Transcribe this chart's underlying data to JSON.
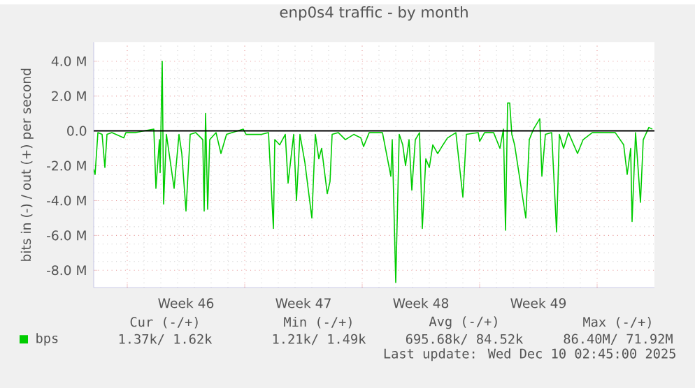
{
  "chart_data": {
    "type": "line",
    "title": "enp0s4 traffic - by month",
    "ylabel": "bits in (-) / out (+) per second",
    "x": [
      "2025-11-08T00:00",
      "2025-11-08T02:00",
      "2025-11-08T06:00",
      "2025-11-08T12:00",
      "2025-11-08T16:00",
      "2025-11-08T19:00",
      "2025-11-09T02:00",
      "2025-11-09T19:00",
      "2025-11-09T22:00",
      "2025-11-10T12:00",
      "2025-11-11T00:00",
      "2025-11-11T14:00",
      "2025-11-11T17:00",
      "2025-11-11T22:00",
      "2025-11-11T23:00",
      "2025-11-12T02:00",
      "2025-11-12T04:00",
      "2025-11-12T08:00",
      "2025-11-12T13:00",
      "2025-11-12T19:00",
      "2025-11-13T02:00",
      "2025-11-13T06:00",
      "2025-11-13T12:00",
      "2025-11-13T18:00",
      "2025-11-14T02:00",
      "2025-11-14T12:00",
      "2025-11-14T14:00",
      "2025-11-14T16:00",
      "2025-11-14T19:00",
      "2025-11-14T22:00",
      "2025-11-15T07:00",
      "2025-11-15T14:00",
      "2025-11-15T22:00",
      "2025-11-16T22:00",
      "2025-11-17T02:00",
      "2025-11-18T00:00",
      "2025-11-18T10:00",
      "2025-11-18T17:00",
      "2025-11-18T19:00",
      "2025-11-19T02:00",
      "2025-11-19T10:00",
      "2025-11-19T14:00",
      "2025-11-19T22:00",
      "2025-11-20T02:00",
      "2025-11-20T07:00",
      "2025-11-20T14:00",
      "2025-11-21T00:00",
      "2025-11-21T05:00",
      "2025-11-21T10:00",
      "2025-11-21T14:00",
      "2025-11-21T22:00",
      "2025-11-22T02:00",
      "2025-11-22T05:00",
      "2025-11-22T14:00",
      "2025-11-23T00:00",
      "2025-11-23T12:00",
      "2025-11-23T22:00",
      "2025-11-24T02:00",
      "2025-11-24T10:00",
      "2025-11-25T05:00",
      "2025-11-25T17:00",
      "2025-11-25T19:00",
      "2025-11-26T00:00",
      "2025-11-26T05:00",
      "2025-11-26T10:00",
      "2025-11-26T14:00",
      "2025-11-26T19:00",
      "2025-11-26T23:00",
      "2025-11-27T04:00",
      "2025-11-27T10:00",
      "2025-11-27T14:00",
      "2025-11-27T19:00",
      "2025-11-28T00:00",
      "2025-11-28T05:00",
      "2025-11-28T12:00",
      "2025-11-28T18:00",
      "2025-11-29T02:00",
      "2025-11-29T14:00",
      "2025-11-30T00:00",
      "2025-11-30T05:00",
      "2025-11-30T22:00",
      "2025-12-01T00:00",
      "2025-12-01T07:00",
      "2025-12-01T20:00",
      "2025-12-02T05:00",
      "2025-12-02T10:00",
      "2025-12-02T13:00",
      "2025-12-02T16:00",
      "2025-12-02T19:00",
      "2025-12-02T22:00",
      "2025-12-03T02:00",
      "2025-12-03T18:00",
      "2025-12-03T23:00",
      "2025-12-04T05:00",
      "2025-12-04T14:00",
      "2025-12-04T17:00",
      "2025-12-04T22:00",
      "2025-12-05T07:00",
      "2025-12-05T14:00",
      "2025-12-05T18:00",
      "2025-12-06T00:00",
      "2025-12-06T07:00",
      "2025-12-06T20:00",
      "2025-12-07T04:00",
      "2025-12-07T17:00",
      "2025-12-08T06:00",
      "2025-12-09T02:00",
      "2025-12-09T14:00",
      "2025-12-09T19:00",
      "2025-12-10T00:00",
      "2025-12-10T02:00",
      "2025-12-10T07:00",
      "2025-12-10T14:00",
      "2025-12-10T18:00",
      "2025-12-11T02:00",
      "2025-12-11T07:00"
    ],
    "series": [
      {
        "name": "bps",
        "color": "#00cc00",
        "values": [
          -2.2,
          -2.5,
          -0.1,
          -0.2,
          -2.1,
          -0.2,
          -0.1,
          -0.4,
          -0.1,
          -0.1,
          0,
          0.1,
          -3.3,
          -0.5,
          -2.4,
          4.0,
          -4.2,
          -0.2,
          -1.6,
          -3.3,
          -0.2,
          -1.3,
          -4.6,
          -0.2,
          -0.1,
          -0.5,
          -4.6,
          1.0,
          -4.5,
          -0.5,
          -0.1,
          -1.3,
          -0.2,
          0.1,
          -0.2,
          -0.2,
          -0.1,
          -5.6,
          -0.5,
          -0.8,
          -0.2,
          -3.0,
          -0.2,
          -4.0,
          -0.2,
          -1.8,
          -5.0,
          -0.2,
          -1.6,
          -1.0,
          -3.6,
          -2.9,
          -0.2,
          -0.1,
          -0.5,
          -0.2,
          -0.4,
          -0.9,
          -0.1,
          -0.1,
          -2.6,
          -0.5,
          -8.7,
          -0.2,
          -0.8,
          -2.0,
          -0.5,
          -3.4,
          -0.5,
          -0.1,
          -5.6,
          -1.6,
          -2.1,
          -0.8,
          -1.3,
          -0.9,
          -0.4,
          -0.1,
          -3.8,
          -0.2,
          -0.1,
          -0.6,
          -0.1,
          -0.1,
          -1.0,
          0.1,
          -5.7,
          1.6,
          1.6,
          -0.2,
          -0.8,
          -5.0,
          -0.5,
          0.1,
          0.7,
          -2.6,
          -0.2,
          -0.1,
          -5.8,
          -0.2,
          -1.0,
          -0.1,
          -1.3,
          -0.5,
          -0.1,
          -0.1,
          -0.1,
          -0.8,
          -2.5,
          -1.0,
          -5.2,
          -0.1,
          -4.1,
          -0.5,
          0.2,
          0.1
        ]
      }
    ],
    "xlim": [
      "2025-11-08T00:00",
      "2025-12-11T10:00"
    ],
    "xticks": [
      {
        "value": "2025-11-10T00:00",
        "label": null
      },
      {
        "value": "2025-11-13T12:00",
        "label": "Week 46"
      },
      {
        "value": "2025-11-17T00:00",
        "label": null
      },
      {
        "value": "2025-11-20T12:00",
        "label": "Week 47"
      },
      {
        "value": "2025-11-24T00:00",
        "label": null
      },
      {
        "value": "2025-11-27T12:00",
        "label": "Week 48"
      },
      {
        "value": "2025-12-01T00:00",
        "label": null
      },
      {
        "value": "2025-12-04T12:00",
        "label": "Week 49"
      },
      {
        "value": "2025-12-08T00:00",
        "label": null
      }
    ],
    "ylim": [
      -9.0,
      5.1
    ],
    "yticks": [
      {
        "value": -8,
        "label": "-8.0 M"
      },
      {
        "value": -6,
        "label": "-6.0 M"
      },
      {
        "value": -4,
        "label": "-4.0 M"
      },
      {
        "value": -2,
        "label": "-2.0 M"
      },
      {
        "value": 0,
        "label": "0.0"
      },
      {
        "value": 2,
        "label": "2.0 M"
      },
      {
        "value": 4,
        "label": "4.0 M"
      }
    ],
    "ref_lines": [
      {
        "axis": "y",
        "value": 0,
        "color": "#000000"
      }
    ],
    "grid": true,
    "legend": "bottom",
    "marker": "none",
    "line_style": "solid",
    "annotations": [
      "Cur (-/+)",
      "1.37k/   1.62k",
      "Min (-/+)",
      "1.21k/   1.49k",
      "Avg (-/+)",
      "695.68k/ 84.52k",
      "Max (-/+)",
      "86.40M/ 71.92M",
      "Last update: Wed Dec 10 02:45:00 2025"
    ]
  }
}
